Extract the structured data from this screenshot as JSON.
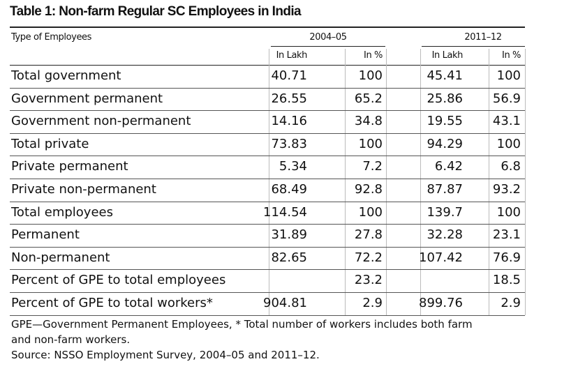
{
  "title": "Table 1: Non-farm Regular SC Employees in India",
  "table": {
    "stub_header": "Type of Employees",
    "groups": [
      "2004–05",
      "2011–12"
    ],
    "subheaders": [
      "In Lakh",
      "In %",
      "In Lakh",
      "In %"
    ],
    "rows": [
      [
        "Total government",
        "40.71",
        "100",
        "45.41",
        "100"
      ],
      [
        "Government permanent",
        "26.55",
        "65.2",
        "25.86",
        "56.9"
      ],
      [
        "Government non-permanent",
        "14.16",
        "34.8",
        "19.55",
        "43.1"
      ],
      [
        "Total private",
        "73.83",
        "100",
        "94.29",
        "100"
      ],
      [
        "Private permanent",
        "5.34",
        "7.2",
        "6.42",
        "6.8"
      ],
      [
        "Private non-permanent",
        "68.49",
        "92.8",
        "87.87",
        "93.2"
      ],
      [
        "Total employees",
        "114.54",
        "100",
        "139.7",
        "100"
      ],
      [
        "Permanent",
        "31.89",
        "27.8",
        "32.28",
        "23.1"
      ],
      [
        "Non-permanent",
        "82.65",
        "72.2",
        "107.42",
        "76.9"
      ],
      [
        "Percent of GPE to total employees",
        null,
        "23.2",
        null,
        "18.5"
      ],
      [
        "Percent of GPE to total workers*",
        "904.81",
        "2.9",
        "899.76",
        "2.9"
      ]
    ]
  },
  "notes": [
    "GPE—Government Permanent Employees, * Total number of workers includes both farm",
    "and non-farm workers.",
    "Source: NSSO Employment Survey, 2004–05 and 2011–12."
  ]
}
